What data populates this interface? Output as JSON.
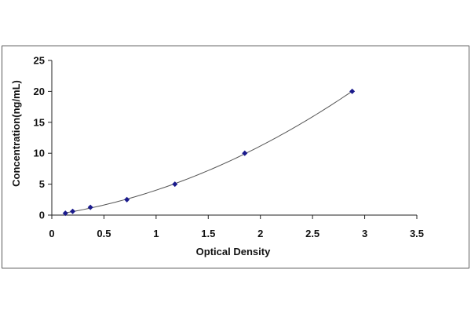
{
  "chart_data": {
    "type": "scatter",
    "title": "",
    "xlabel": "Optical Density",
    "ylabel": "Concentration(ng/mL)",
    "xlim": [
      0,
      3.5
    ],
    "ylim": [
      0,
      25
    ],
    "xticks": [
      "0",
      "0.5",
      "1",
      "1.5",
      "2",
      "2.5",
      "3",
      "3.5"
    ],
    "yticks": [
      "0",
      "5",
      "10",
      "15",
      "20",
      "25"
    ],
    "grid": false,
    "legend": "none",
    "series": [
      {
        "x": [
          0.13,
          0.2,
          0.37,
          0.72,
          1.18,
          1.85,
          2.88
        ],
        "y": [
          0.3,
          0.6,
          1.25,
          2.5,
          5,
          10,
          20
        ],
        "trendline": "polynomial",
        "marker_color": "#1a1a8c",
        "line_color": "#555555"
      }
    ]
  }
}
